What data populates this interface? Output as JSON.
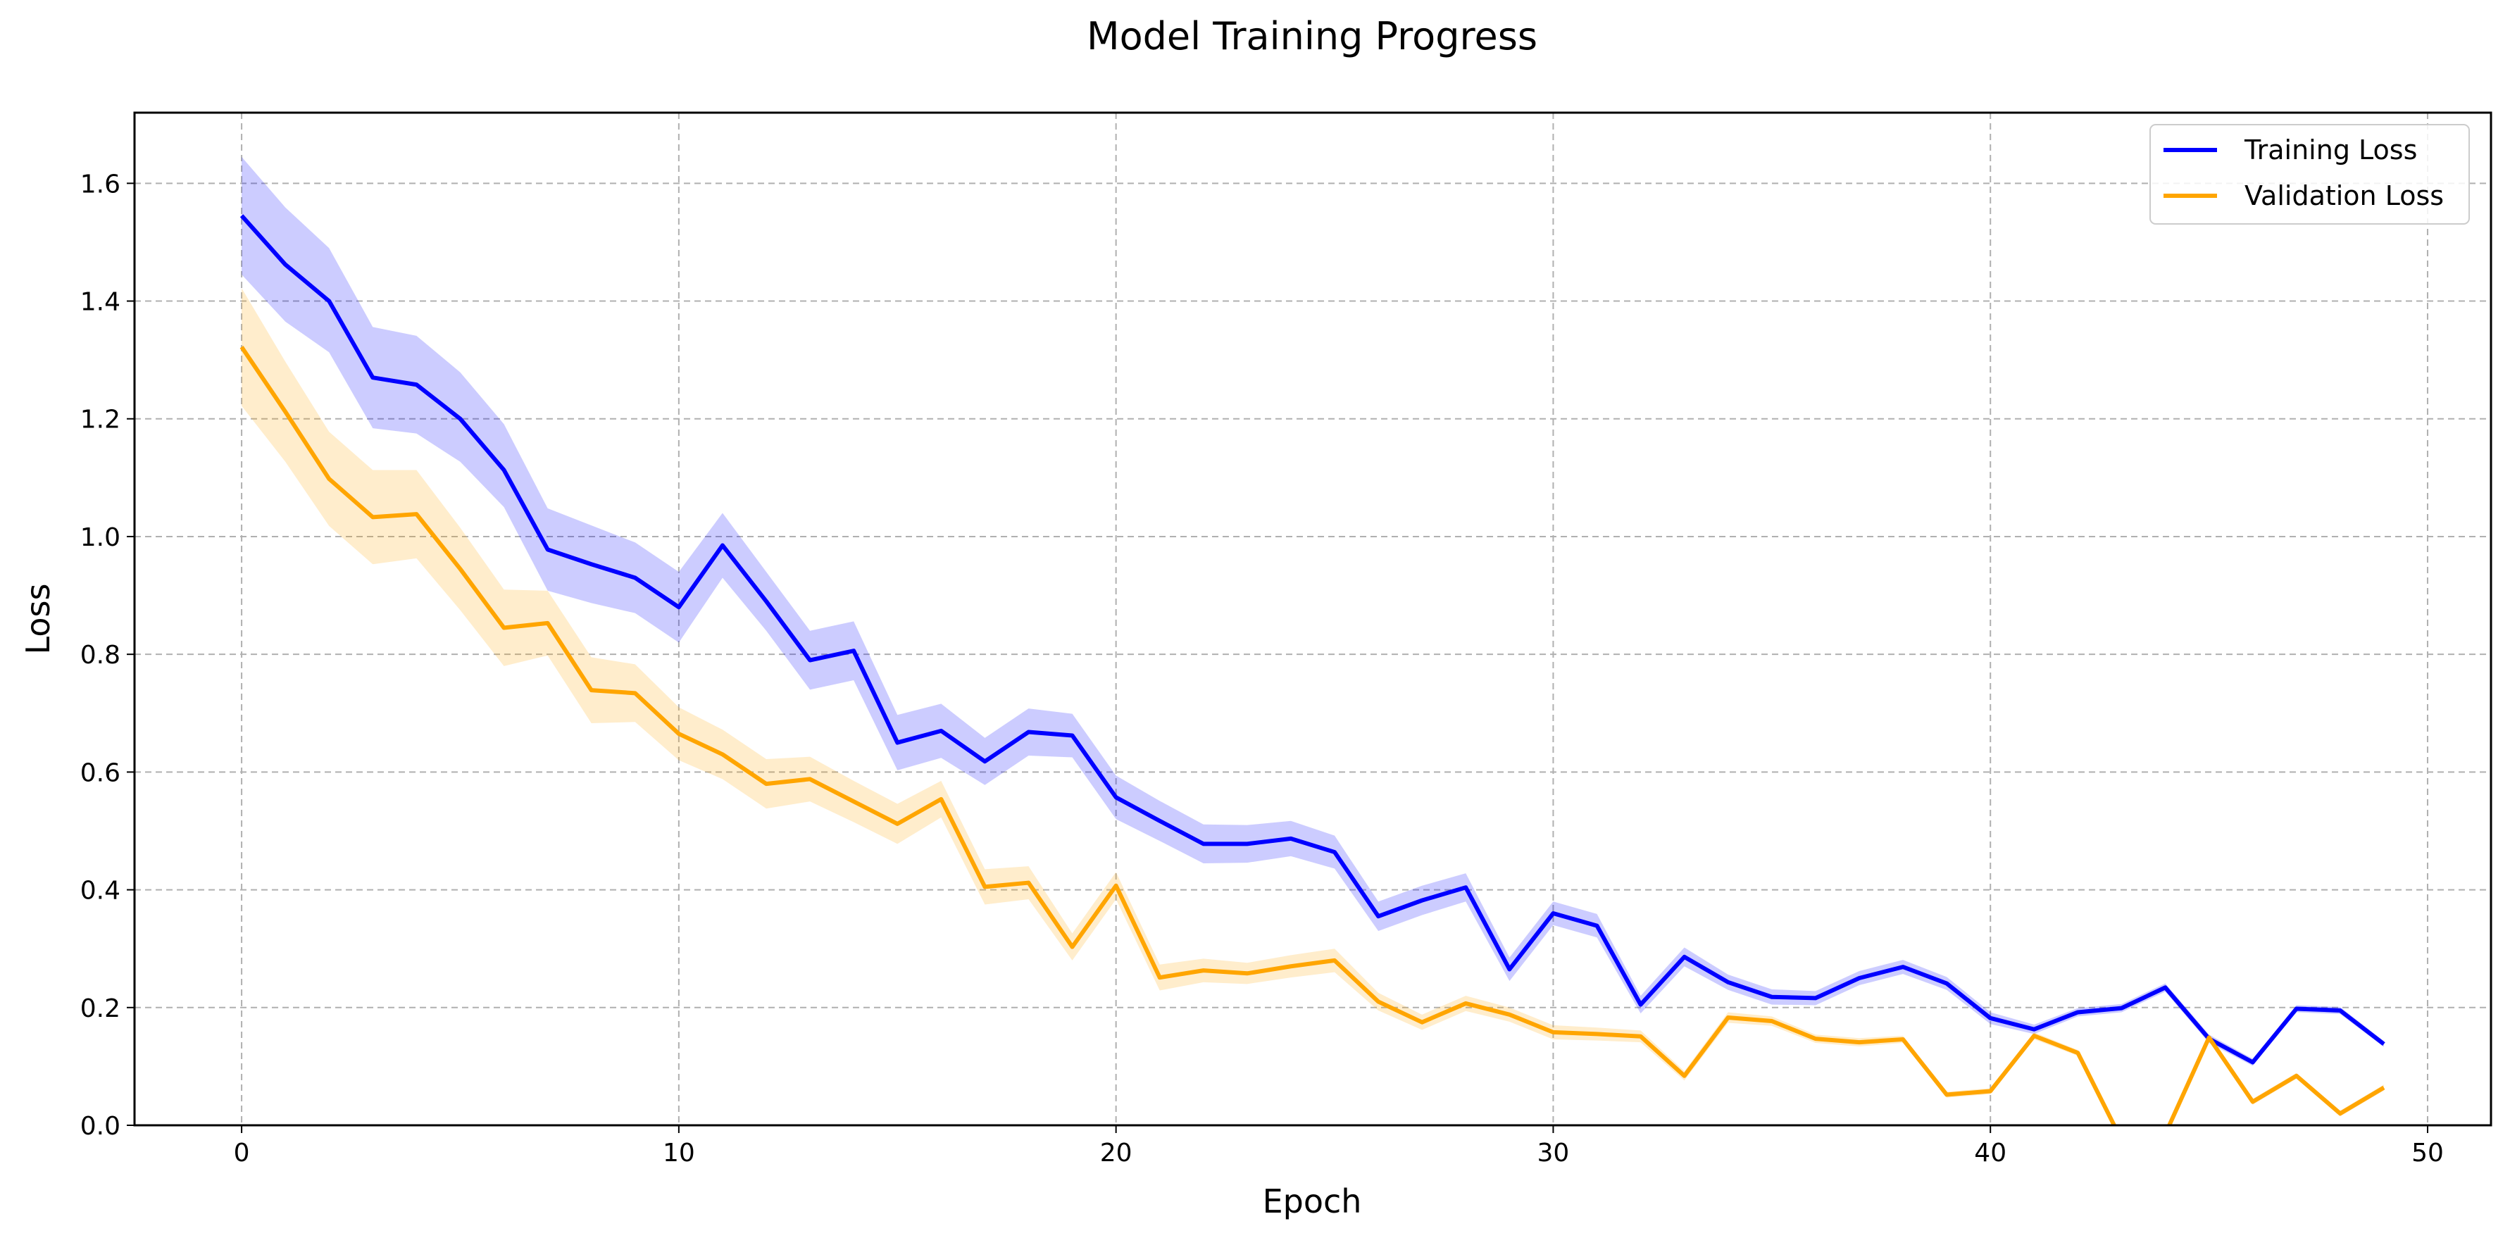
{
  "chart_data": {
    "type": "line",
    "title": "Model Training Progress",
    "xlabel": "Epoch",
    "ylabel": "Loss",
    "xlim": [
      -2.45,
      51.45
    ],
    "ylim": [
      0,
      1.72
    ],
    "xticks": [
      0,
      10,
      20,
      30,
      40,
      50
    ],
    "yticks": [
      0.0,
      0.2,
      0.4,
      0.6,
      0.8,
      1.0,
      1.2,
      1.4,
      1.6
    ],
    "xtick_labels": [
      "0",
      "10",
      "20",
      "30",
      "40",
      "50"
    ],
    "ytick_labels": [
      "0.0",
      "0.2",
      "0.4",
      "0.6",
      "0.8",
      "1.0",
      "1.2",
      "1.4",
      "1.6"
    ],
    "grid": true,
    "grid_style": "dashed",
    "legend_position": "top-right",
    "x": [
      0,
      1,
      2,
      3,
      4,
      5,
      6,
      7,
      8,
      9,
      10,
      11,
      12,
      13,
      14,
      15,
      16,
      17,
      18,
      19,
      20,
      21,
      22,
      23,
      24,
      25,
      26,
      27,
      28,
      29,
      30,
      31,
      32,
      33,
      34,
      35,
      36,
      37,
      38,
      39,
      40,
      41,
      42,
      43,
      44,
      45,
      46,
      47,
      48,
      49
    ],
    "series": [
      {
        "name": "Training Loss",
        "color": "#0000ff",
        "band_color": "#0000ff",
        "values": [
          1.545,
          1.462,
          1.4,
          1.27,
          1.258,
          1.2,
          1.113,
          0.978,
          0.953,
          0.93,
          0.88,
          0.985,
          0.89,
          0.79,
          0.806,
          0.65,
          0.67,
          0.618,
          0.668,
          0.662,
          0.557,
          0.517,
          0.478,
          0.478,
          0.487,
          0.464,
          0.355,
          0.382,
          0.404,
          0.265,
          0.36,
          0.339,
          0.205,
          0.286,
          0.243,
          0.218,
          0.216,
          0.25,
          0.269,
          0.241,
          0.182,
          0.163,
          0.192,
          0.199,
          0.234,
          0.147,
          0.107,
          0.198,
          0.195,
          0.138
        ],
        "lower": [
          1.445,
          1.365,
          1.313,
          1.184,
          1.175,
          1.127,
          1.05,
          0.908,
          0.887,
          0.87,
          0.82,
          0.93,
          0.84,
          0.74,
          0.756,
          0.603,
          0.624,
          0.578,
          0.628,
          0.625,
          0.52,
          0.483,
          0.445,
          0.446,
          0.457,
          0.436,
          0.33,
          0.357,
          0.38,
          0.245,
          0.34,
          0.319,
          0.19,
          0.27,
          0.23,
          0.205,
          0.204,
          0.238,
          0.257,
          0.23,
          0.172,
          0.155,
          0.185,
          0.192,
          0.227,
          0.14,
          0.101,
          0.192,
          0.189,
          0.133
        ],
        "upper": [
          1.645,
          1.559,
          1.49,
          1.356,
          1.341,
          1.279,
          1.191,
          1.048,
          1.019,
          0.99,
          0.94,
          1.04,
          0.94,
          0.84,
          0.856,
          0.697,
          0.716,
          0.658,
          0.708,
          0.699,
          0.594,
          0.551,
          0.511,
          0.51,
          0.517,
          0.492,
          0.38,
          0.407,
          0.428,
          0.285,
          0.38,
          0.359,
          0.22,
          0.302,
          0.256,
          0.231,
          0.228,
          0.262,
          0.281,
          0.252,
          0.192,
          0.171,
          0.199,
          0.206,
          0.241,
          0.154,
          0.113,
          0.204,
          0.201,
          0.143
        ]
      },
      {
        "name": "Validation Loss",
        "color": "#ffa500",
        "band_color": "#ffa500",
        "values": [
          1.322,
          1.212,
          1.098,
          1.033,
          1.038,
          0.945,
          0.845,
          0.853,
          0.739,
          0.734,
          0.665,
          0.63,
          0.58,
          0.588,
          0.55,
          0.512,
          0.554,
          0.405,
          0.412,
          0.303,
          0.407,
          0.251,
          0.263,
          0.258,
          0.27,
          0.28,
          0.21,
          0.175,
          0.207,
          0.188,
          0.158,
          0.155,
          0.151,
          0.084,
          0.183,
          0.177,
          0.147,
          0.141,
          0.146,
          0.052,
          0.058,
          0.152,
          0.123,
          -0.025,
          -0.015,
          0.149,
          0.04,
          0.084,
          0.02,
          0.064
        ],
        "lower": [
          1.222,
          1.127,
          1.018,
          0.953,
          0.963,
          0.875,
          0.78,
          0.798,
          0.683,
          0.685,
          0.62,
          0.588,
          0.538,
          0.55,
          0.515,
          0.478,
          0.523,
          0.375,
          0.384,
          0.28,
          0.384,
          0.229,
          0.243,
          0.24,
          0.251,
          0.26,
          0.195,
          0.162,
          0.194,
          0.176,
          0.146,
          0.144,
          0.141,
          0.076,
          0.174,
          0.169,
          0.14,
          0.134,
          0.14,
          0.047,
          0.053,
          0.146,
          0.118,
          -0.03,
          -0.02,
          0.143,
          0.035,
          0.079,
          0.015,
          0.059
        ],
        "upper": [
          1.422,
          1.297,
          1.178,
          1.113,
          1.113,
          1.015,
          0.91,
          0.908,
          0.795,
          0.783,
          0.71,
          0.672,
          0.622,
          0.626,
          0.585,
          0.546,
          0.585,
          0.435,
          0.44,
          0.326,
          0.43,
          0.273,
          0.283,
          0.276,
          0.289,
          0.3,
          0.225,
          0.188,
          0.22,
          0.2,
          0.17,
          0.166,
          0.161,
          0.092,
          0.192,
          0.185,
          0.154,
          0.148,
          0.152,
          0.057,
          0.063,
          0.158,
          0.128,
          -0.02,
          -0.01,
          0.155,
          0.045,
          0.089,
          0.025,
          0.069
        ]
      }
    ]
  }
}
